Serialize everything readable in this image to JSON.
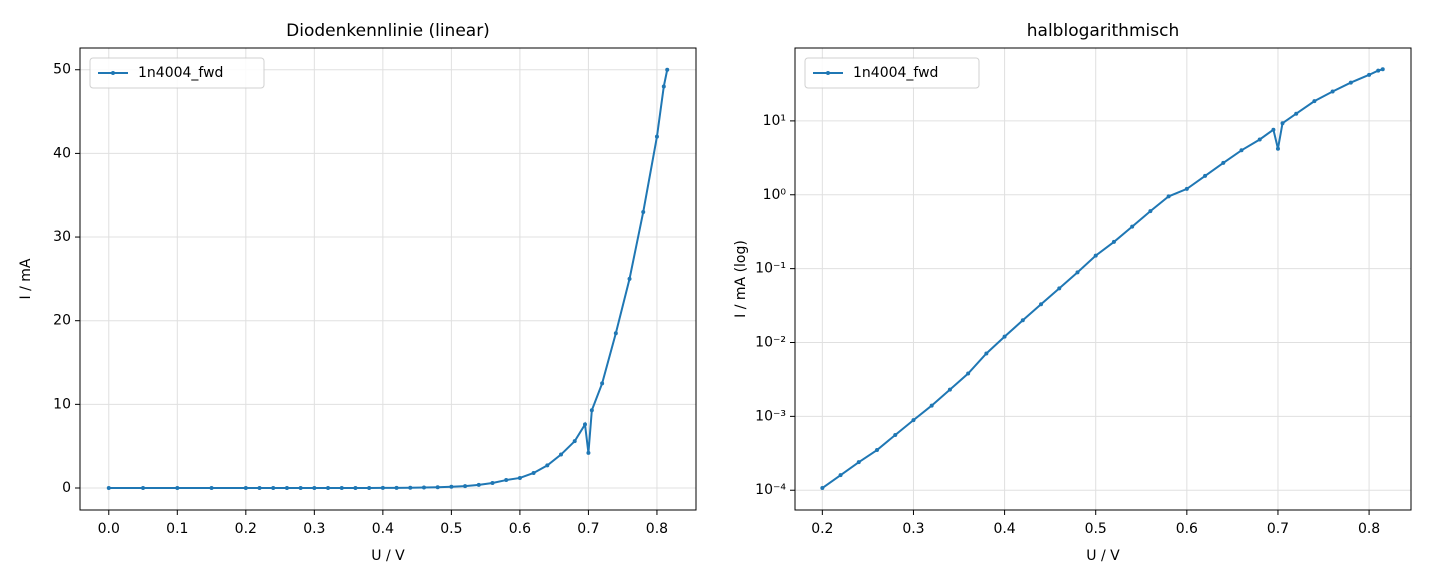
{
  "chart_data": [
    {
      "type": "line",
      "title": "Diodenkennlinie (linear)",
      "x_label": "U / V",
      "y_label": "I / mA",
      "xlim": [
        -0.042,
        0.857
      ],
      "ylim": [
        -2.63,
        52.6
      ],
      "xticks": [
        {
          "value": 0,
          "label": "0.0"
        },
        0.1,
        0.2,
        0.3,
        0.4,
        0.5,
        0.6,
        0.7,
        0.8
      ],
      "yticks": [
        0,
        10,
        20,
        30,
        40,
        50
      ],
      "grid": true,
      "log_y": false,
      "legend": "upper left",
      "x": [
        0.0,
        0.05,
        0.1,
        0.15,
        0.2,
        0.22,
        0.24,
        0.26,
        0.28,
        0.3,
        0.32,
        0.34,
        0.36,
        0.38,
        0.4,
        0.42,
        0.44,
        0.46,
        0.48,
        0.5,
        0.52,
        0.54,
        0.56,
        0.58,
        0.6,
        0.62,
        0.64,
        0.66,
        0.68,
        0.695,
        0.7,
        0.705,
        0.72,
        0.74,
        0.76,
        0.78,
        0.8,
        0.81,
        0.815
      ],
      "series": [
        {
          "name": "1n4004_fwd",
          "color": "#1f77b4",
          "values": [
            0.0,
            0.0,
            1e-05,
            3e-05,
            0.000107,
            0.00016,
            0.00024,
            0.00035,
            0.00056,
            0.00089,
            0.0014,
            0.0023,
            0.0038,
            0.0071,
            0.012,
            0.02,
            0.033,
            0.054,
            0.089,
            0.15,
            0.23,
            0.37,
            0.6,
            0.95,
            1.2,
            1.8,
            2.7,
            4.0,
            5.6,
            7.6,
            4.2,
            9.3,
            12.5,
            18.5,
            25,
            33,
            42,
            48,
            50
          ]
        }
      ]
    },
    {
      "type": "line",
      "title": "halblogarithmisch",
      "x_label": "U / V",
      "y_label": "I / mA (log)",
      "xlim": [
        0.17,
        0.846
      ],
      "ylim": [
        5.4e-05,
        97
      ],
      "xticks": [
        0.2,
        0.3,
        0.4,
        0.5,
        0.6,
        0.7,
        0.8
      ],
      "yticks": [
        {
          "value": 0.0001,
          "label": "10⁻⁴"
        },
        {
          "value": 0.001,
          "label": "10⁻³"
        },
        {
          "value": 0.01,
          "label": "10⁻²"
        },
        {
          "value": 0.1,
          "label": "10⁻¹"
        },
        {
          "value": 1,
          "label": "10⁰"
        },
        {
          "value": 10,
          "label": "10¹"
        }
      ],
      "grid": true,
      "log_y": true,
      "legend": "upper left",
      "x": [
        0.2,
        0.22,
        0.24,
        0.26,
        0.28,
        0.3,
        0.32,
        0.34,
        0.36,
        0.38,
        0.4,
        0.42,
        0.44,
        0.46,
        0.48,
        0.5,
        0.52,
        0.54,
        0.56,
        0.58,
        0.6,
        0.62,
        0.64,
        0.66,
        0.68,
        0.695,
        0.7,
        0.705,
        0.72,
        0.74,
        0.76,
        0.78,
        0.8,
        0.81,
        0.815
      ],
      "series": [
        {
          "name": "1n4004_fwd",
          "color": "#1f77b4",
          "values": [
            0.000107,
            0.00016,
            0.00024,
            0.00035,
            0.00056,
            0.00089,
            0.0014,
            0.0023,
            0.0038,
            0.0071,
            0.012,
            0.02,
            0.033,
            0.054,
            0.089,
            0.15,
            0.23,
            0.37,
            0.6,
            0.95,
            1.2,
            1.8,
            2.7,
            4.0,
            5.6,
            7.6,
            4.2,
            9.3,
            12.5,
            18.5,
            25,
            33,
            42,
            48,
            50
          ]
        }
      ]
    }
  ]
}
